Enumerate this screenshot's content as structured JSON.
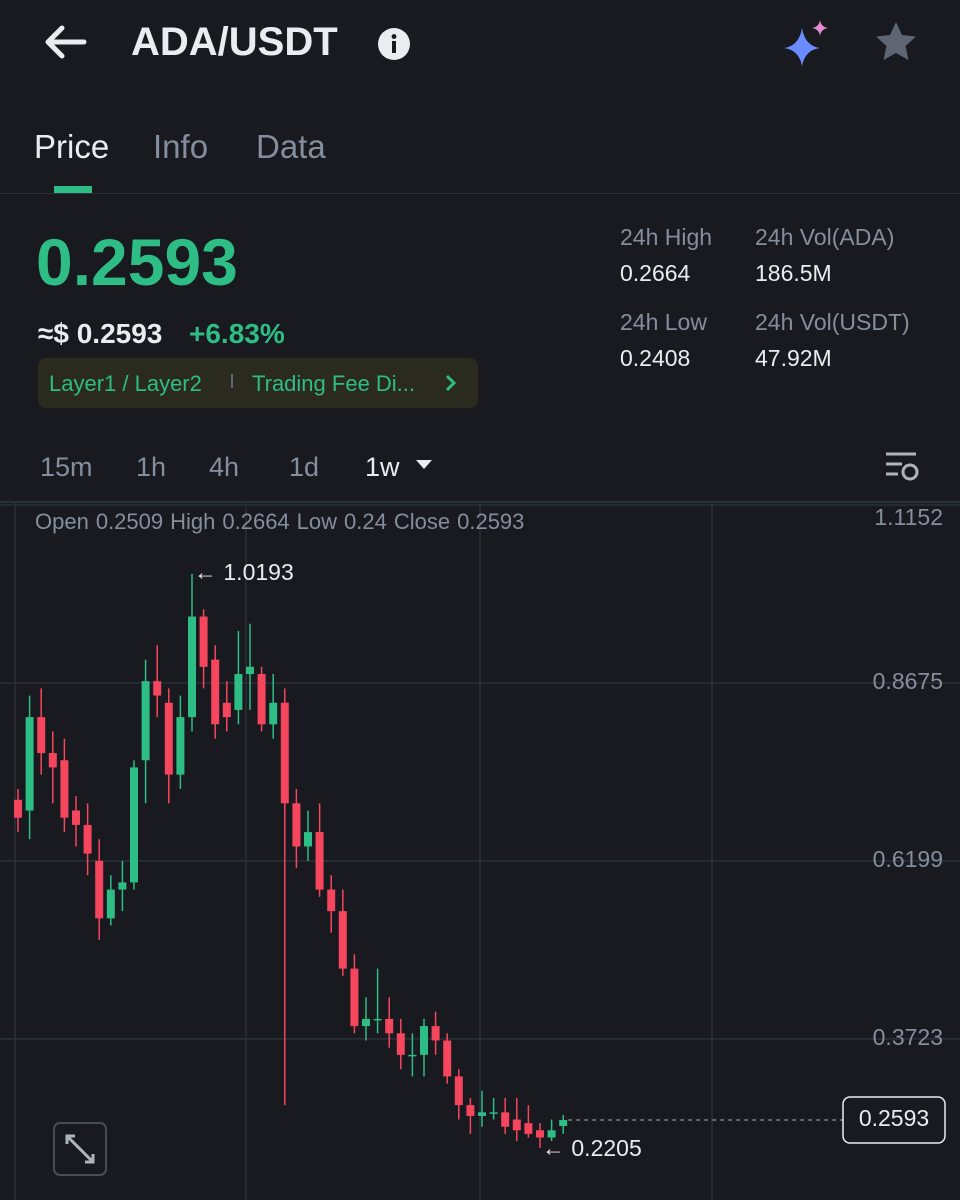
{
  "header": {
    "title": "ADA/USDT"
  },
  "tabs": [
    "Price",
    "Info",
    "Data"
  ],
  "price": {
    "last": "0.2593",
    "approx": "≈$ 0.2593",
    "change": "+6.83%",
    "tags": [
      "Layer1 / Layer2",
      "Trading Fee Di..."
    ]
  },
  "stats": [
    {
      "label": "24h High",
      "value": "0.2664"
    },
    {
      "label": "24h Vol(ADA)",
      "value": "186.5M"
    },
    {
      "label": "24h Low",
      "value": "0.2408"
    },
    {
      "label": "24h Vol(USDT)",
      "value": "47.92M"
    }
  ],
  "timeframes": [
    "15m",
    "1h",
    "4h",
    "1d",
    "1w"
  ],
  "ohlc_labels": [
    "Open",
    "High",
    "Low",
    "Close"
  ],
  "chart_data": {
    "type": "candlestick",
    "open": [
      0.705,
      0.69,
      0.82,
      0.77,
      0.76,
      0.69,
      0.67,
      0.62,
      0.54,
      0.58,
      0.59,
      0.76,
      0.87,
      0.84,
      0.74,
      0.82,
      0.96,
      0.9,
      0.84,
      0.83,
      0.88,
      0.88,
      0.81,
      0.84,
      0.7,
      0.64,
      0.66,
      0.58,
      0.55,
      0.47,
      0.39,
      0.4,
      0.4,
      0.38,
      0.35,
      0.35,
      0.39,
      0.37,
      0.32,
      0.28,
      0.265,
      0.27,
      0.27,
      0.26,
      0.255,
      0.245,
      0.235,
      0.2509
    ],
    "high": [
      0.72,
      0.85,
      0.86,
      0.8,
      0.79,
      0.71,
      0.7,
      0.65,
      0.6,
      0.62,
      0.76,
      0.9,
      0.92,
      0.86,
      0.85,
      1.0193,
      0.97,
      0.92,
      0.87,
      0.94,
      0.95,
      0.89,
      0.88,
      0.86,
      0.72,
      0.69,
      0.7,
      0.6,
      0.58,
      0.49,
      0.43,
      0.47,
      0.43,
      0.4,
      0.38,
      0.4,
      0.41,
      0.38,
      0.33,
      0.29,
      0.3,
      0.29,
      0.29,
      0.29,
      0.28,
      0.255,
      0.26,
      0.2664
    ],
    "low": [
      0.66,
      0.65,
      0.74,
      0.7,
      0.66,
      0.64,
      0.6,
      0.51,
      0.53,
      0.55,
      0.58,
      0.7,
      0.82,
      0.7,
      0.72,
      0.8,
      0.86,
      0.79,
      0.8,
      0.81,
      0.83,
      0.8,
      0.79,
      0.28,
      0.61,
      0.62,
      0.57,
      0.52,
      0.46,
      0.38,
      0.37,
      0.38,
      0.36,
      0.33,
      0.32,
      0.32,
      0.35,
      0.31,
      0.26,
      0.24,
      0.25,
      0.26,
      0.24,
      0.23,
      0.235,
      0.2205,
      0.23,
      0.24
    ],
    "close": [
      0.68,
      0.82,
      0.77,
      0.75,
      0.68,
      0.67,
      0.63,
      0.54,
      0.58,
      0.59,
      0.75,
      0.87,
      0.85,
      0.74,
      0.82,
      0.96,
      0.89,
      0.81,
      0.82,
      0.88,
      0.89,
      0.81,
      0.84,
      0.7,
      0.64,
      0.66,
      0.58,
      0.55,
      0.47,
      0.39,
      0.4,
      0.4,
      0.38,
      0.35,
      0.35,
      0.39,
      0.37,
      0.32,
      0.28,
      0.265,
      0.27,
      0.27,
      0.25,
      0.245,
      0.24,
      0.235,
      0.245,
      0.2593
    ],
    "up_color": "#2ebd85",
    "down_color": "#f6465d",
    "ylim": [
      0.148,
      1.118
    ],
    "yticks": [
      1.1152,
      0.8675,
      0.6199,
      0.3723
    ],
    "grid": true,
    "current_price": 0.2593,
    "annotations": [
      {
        "index": 15,
        "value": 1.0193,
        "label": "← 1.0193"
      },
      {
        "index": 45,
        "value": 0.2205,
        "label": "← 0.2205"
      }
    ]
  }
}
